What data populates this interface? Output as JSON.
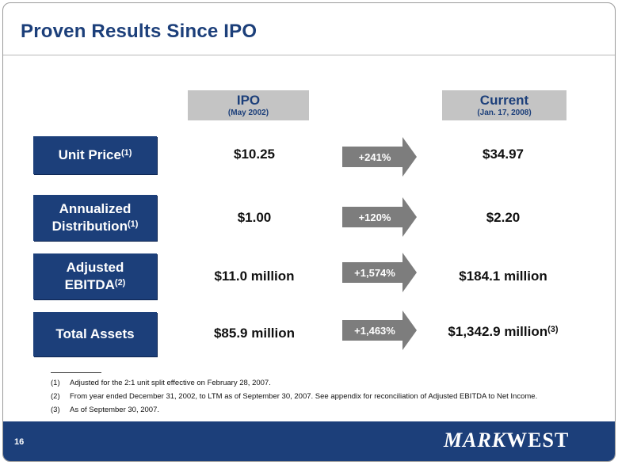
{
  "slide": {
    "title": "Proven Results Since IPO",
    "page_number": "16"
  },
  "columns": {
    "ipo": {
      "label": "IPO",
      "sub": "(May 2002)"
    },
    "current": {
      "label": "Current",
      "sub": "(Jan. 17, 2008)"
    }
  },
  "rows": [
    {
      "label_line1": "Unit Price",
      "label_line2": "",
      "sup": "(1)",
      "ipo": "$10.25",
      "change": "+241%",
      "current": "$34.97",
      "current_sup": ""
    },
    {
      "label_line1": "Annualized",
      "label_line2": "Distribution",
      "sup": "(1)",
      "ipo": "$1.00",
      "change": "+120%",
      "current": "$2.20",
      "current_sup": ""
    },
    {
      "label_line1": "Adjusted",
      "label_line2": "EBITDA",
      "sup": "(2)",
      "ipo": "$11.0 million",
      "change": "+1,574%",
      "current": "$184.1 million",
      "current_sup": ""
    },
    {
      "label_line1": "Total Assets",
      "label_line2": "",
      "sup": "",
      "ipo": "$85.9 million",
      "change": "+1,463%",
      "current": "$1,342.9 million",
      "current_sup": "(3)"
    }
  ],
  "footnotes": [
    {
      "num": "(1)",
      "text": "Adjusted for the 2:1 unit split effective on February 28, 2007."
    },
    {
      "num": "(2)",
      "text": "From year ended December 31, 2002, to LTM as of September 30, 2007. See appendix for reconciliation of Adjusted EBITDA to Net Income."
    },
    {
      "num": "(3)",
      "text": "As of September 30, 2007."
    }
  ],
  "logo": {
    "part1": "MARK",
    "part2": "WEST"
  },
  "colors": {
    "navy": "#1c3f7a",
    "arrow_gray": "#7d7d7d",
    "header_gray": "#c4c4c4"
  }
}
